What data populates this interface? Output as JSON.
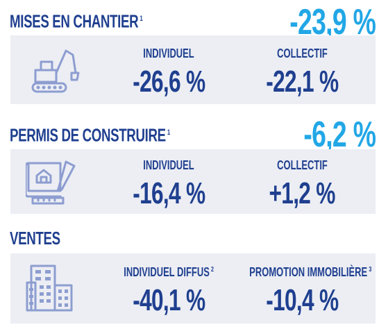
{
  "sections": [
    {
      "title": "MISES EN CHANTIER",
      "footnote": "1",
      "total": "-23,9 %",
      "icon": "excavator-icon",
      "columns": [
        {
          "label": "INDIVIDUEL",
          "footnote": "",
          "value": "-26,6 %"
        },
        {
          "label": "COLLECTIF",
          "footnote": "",
          "value": "-22,1 %"
        }
      ]
    },
    {
      "title": "PERMIS DE CONSTRUIRE",
      "footnote": "1",
      "total": "-6,2 %",
      "icon": "blueprint-icon",
      "columns": [
        {
          "label": "INDIVIDUEL",
          "footnote": "",
          "value": "-16,4 %"
        },
        {
          "label": "COLLECTIF",
          "footnote": "",
          "value": "+1,2 %"
        }
      ]
    },
    {
      "title": "VENTES",
      "footnote": "",
      "total": "",
      "icon": "buildings-icon",
      "columns": [
        {
          "label": "INDIVIDUEL DIFFUS",
          "footnote": "2",
          "value": "-40,1 %"
        },
        {
          "label": "PROMOTION IMMOBILIÈRE",
          "footnote": "3",
          "value": "-10,4 %"
        }
      ]
    }
  ],
  "colors": {
    "title": "#1f3f8f",
    "accent": "#22a7e6",
    "panel": "#eceef4",
    "icon": "#8d9dd0"
  }
}
